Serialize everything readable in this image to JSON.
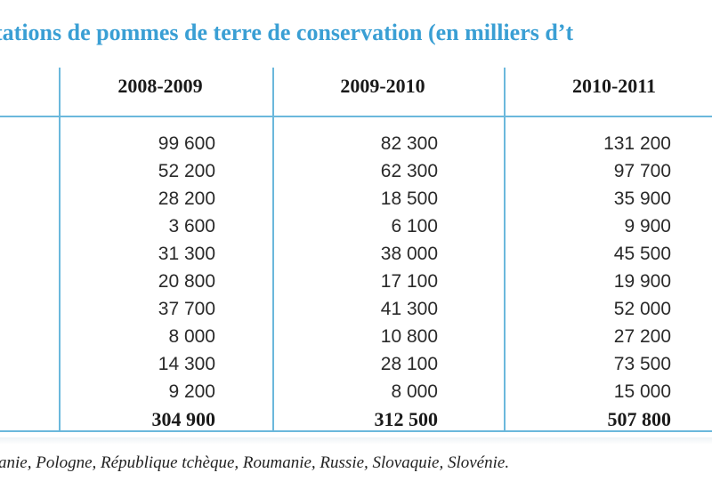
{
  "title": "tations de pommes de terre de conservation (en milliers d’t",
  "columns": [
    "2008-2009",
    "2009-2010",
    "2010-2011"
  ],
  "rows": [
    [
      "99 600",
      "82 300",
      "131 200"
    ],
    [
      "52 200",
      "62 300",
      "97 700"
    ],
    [
      "28 200",
      "18 500",
      "35 900"
    ],
    [
      "3 600",
      "6 100",
      "9 900"
    ],
    [
      "31 300",
      "38 000",
      "45 500"
    ],
    [
      "20 800",
      "17 100",
      "19 900"
    ],
    [
      "37 700",
      "41 300",
      "52 000"
    ],
    [
      "8 000",
      "10 800",
      "27 200"
    ],
    [
      "14 300",
      "28 100",
      "73 500"
    ],
    [
      "9 200",
      "8 000",
      "15 000"
    ]
  ],
  "totals": [
    "304 900",
    "312 500",
    "507 800"
  ],
  "footnote": "anie, Pologne, République tchèque, Roumanie, Russie, Slovaquie, Slovénie.",
  "colors": {
    "accent": "#3a9fd4",
    "rule": "#6bb8dc"
  }
}
